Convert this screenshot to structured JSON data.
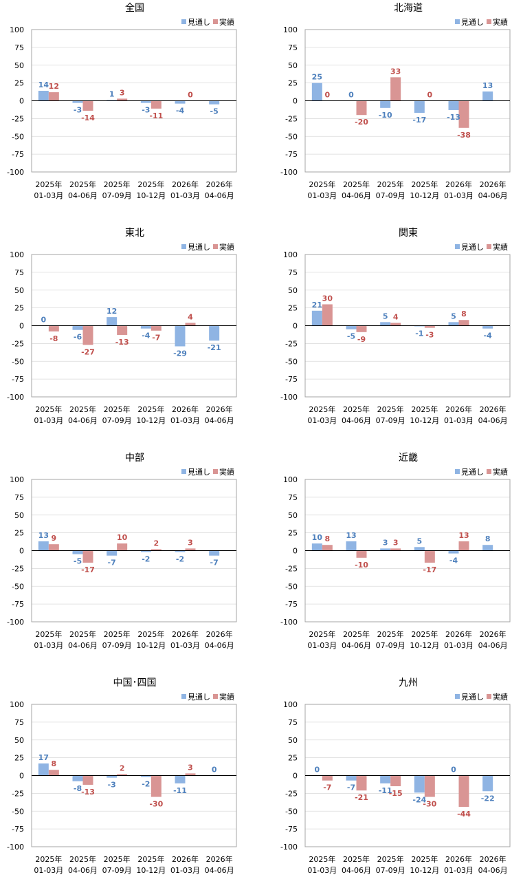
{
  "legend": [
    "見通し",
    "実績"
  ],
  "colors": {
    "forecast": "#8FB4E3",
    "forecast_label": "#4F81BD",
    "actual": "#D99594",
    "actual_label": "#C0504D",
    "grid": "#D9D9D9",
    "axis": "#A6A6A6"
  },
  "chart_data": [
    {
      "type": "bar",
      "title": "全国",
      "categories": [
        [
          "2025年",
          "01-03月"
        ],
        [
          "2025年",
          "04-06月"
        ],
        [
          "2025年",
          "07-09月"
        ],
        [
          "2025年",
          "10-12月"
        ],
        [
          "2026年",
          "01-03月"
        ],
        [
          "2026年",
          "04-06月"
        ]
      ],
      "series": [
        {
          "name": "見通し",
          "values": [
            14,
            -3,
            1,
            -3,
            -4,
            -5
          ]
        },
        {
          "name": "実績",
          "values": [
            12,
            -14,
            3,
            -11,
            0,
            null
          ]
        }
      ],
      "ylim": [
        -100,
        100
      ],
      "yticks": [
        100,
        75,
        50,
        25,
        0,
        -25,
        -50,
        -75,
        -100
      ],
      "grid": true,
      "legend_position": "top-right"
    },
    {
      "type": "bar",
      "title": "北海道",
      "categories": [
        [
          "2025年",
          "01-03月"
        ],
        [
          "2025年",
          "04-06月"
        ],
        [
          "2025年",
          "07-09月"
        ],
        [
          "2025年",
          "10-12月"
        ],
        [
          "2026年",
          "01-03月"
        ],
        [
          "2026年",
          "04-06月"
        ]
      ],
      "series": [
        {
          "name": "見通し",
          "values": [
            25,
            0,
            -10,
            -17,
            -13,
            13
          ]
        },
        {
          "name": "実績",
          "values": [
            0,
            -20,
            33,
            0,
            -38,
            null
          ]
        }
      ],
      "ylim": [
        -100,
        100
      ],
      "yticks": [
        100,
        75,
        50,
        25,
        0,
        -25,
        -50,
        -75,
        -100
      ],
      "grid": true,
      "legend_position": "top-right"
    },
    {
      "type": "bar",
      "title": "東北",
      "categories": [
        [
          "2025年",
          "01-03月"
        ],
        [
          "2025年",
          "04-06月"
        ],
        [
          "2025年",
          "07-09月"
        ],
        [
          "2025年",
          "10-12月"
        ],
        [
          "2026年",
          "01-03月"
        ],
        [
          "2026年",
          "04-06月"
        ]
      ],
      "series": [
        {
          "name": "見通し",
          "values": [
            0,
            -6,
            12,
            -4,
            -29,
            -21
          ]
        },
        {
          "name": "実績",
          "values": [
            -8,
            -27,
            -13,
            -7,
            4,
            null
          ]
        }
      ],
      "ylim": [
        -100,
        100
      ],
      "yticks": [
        100,
        75,
        50,
        25,
        0,
        -25,
        -50,
        -75,
        -100
      ],
      "grid": true,
      "legend_position": "top-right"
    },
    {
      "type": "bar",
      "title": "関東",
      "categories": [
        [
          "2025年",
          "01-03月"
        ],
        [
          "2025年",
          "04-06月"
        ],
        [
          "2025年",
          "07-09月"
        ],
        [
          "2025年",
          "10-12月"
        ],
        [
          "2026年",
          "01-03月"
        ],
        [
          "2026年",
          "04-06月"
        ]
      ],
      "series": [
        {
          "name": "見通し",
          "values": [
            21,
            -5,
            5,
            -1,
            5,
            -4
          ]
        },
        {
          "name": "実績",
          "values": [
            30,
            -9,
            4,
            -3,
            8,
            null
          ]
        }
      ],
      "ylim": [
        -100,
        100
      ],
      "yticks": [
        100,
        75,
        50,
        25,
        0,
        -25,
        -50,
        -75,
        -100
      ],
      "grid": true,
      "legend_position": "top-right"
    },
    {
      "type": "bar",
      "title": "中部",
      "categories": [
        [
          "2025年",
          "01-03月"
        ],
        [
          "2025年",
          "04-06月"
        ],
        [
          "2025年",
          "07-09月"
        ],
        [
          "2025年",
          "10-12月"
        ],
        [
          "2026年",
          "01-03月"
        ],
        [
          "2026年",
          "04-06月"
        ]
      ],
      "series": [
        {
          "name": "見通し",
          "values": [
            13,
            -5,
            -7,
            -2,
            -2,
            -7
          ]
        },
        {
          "name": "実績",
          "values": [
            9,
            -17,
            10,
            2,
            3,
            null
          ]
        }
      ],
      "ylim": [
        -100,
        100
      ],
      "yticks": [
        100,
        75,
        50,
        25,
        0,
        -25,
        -50,
        -75,
        -100
      ],
      "grid": true,
      "legend_position": "top-right"
    },
    {
      "type": "bar",
      "title": "近畿",
      "categories": [
        [
          "2025年",
          "01-03月"
        ],
        [
          "2025年",
          "04-06月"
        ],
        [
          "2025年",
          "07-09月"
        ],
        [
          "2025年",
          "10-12月"
        ],
        [
          "2026年",
          "01-03月"
        ],
        [
          "2026年",
          "04-06月"
        ]
      ],
      "series": [
        {
          "name": "見通し",
          "values": [
            10,
            13,
            3,
            5,
            -4,
            8
          ]
        },
        {
          "name": "実績",
          "values": [
            8,
            -10,
            3,
            -17,
            13,
            null
          ]
        }
      ],
      "ylim": [
        -100,
        100
      ],
      "yticks": [
        100,
        75,
        50,
        25,
        0,
        -25,
        -50,
        -75,
        -100
      ],
      "grid": true,
      "legend_position": "top-right"
    },
    {
      "type": "bar",
      "title": "中国･四国",
      "categories": [
        [
          "2025年",
          "01-03月"
        ],
        [
          "2025年",
          "04-06月"
        ],
        [
          "2025年",
          "07-09月"
        ],
        [
          "2025年",
          "10-12月"
        ],
        [
          "2026年",
          "01-03月"
        ],
        [
          "2026年",
          "04-06月"
        ]
      ],
      "series": [
        {
          "name": "見通し",
          "values": [
            17,
            -8,
            -3,
            -2,
            -11,
            0
          ]
        },
        {
          "name": "実績",
          "values": [
            8,
            -13,
            2,
            -30,
            3,
            null
          ]
        }
      ],
      "ylim": [
        -100,
        100
      ],
      "yticks": [
        100,
        75,
        50,
        25,
        0,
        -25,
        -50,
        -75,
        -100
      ],
      "grid": true,
      "legend_position": "top-right"
    },
    {
      "type": "bar",
      "title": "九州",
      "categories": [
        [
          "2025年",
          "01-03月"
        ],
        [
          "2025年",
          "04-06月"
        ],
        [
          "2025年",
          "07-09月"
        ],
        [
          "2025年",
          "10-12月"
        ],
        [
          "2026年",
          "01-03月"
        ],
        [
          "2026年",
          "04-06月"
        ]
      ],
      "series": [
        {
          "name": "見通し",
          "values": [
            0,
            -7,
            -11,
            -24,
            0,
            -22
          ]
        },
        {
          "name": "実績",
          "values": [
            -7,
            -21,
            -15,
            -30,
            -44,
            null
          ]
        }
      ],
      "ylim": [
        -100,
        100
      ],
      "yticks": [
        100,
        75,
        50,
        25,
        0,
        -25,
        -50,
        -75,
        -100
      ],
      "grid": true,
      "legend_position": "top-right"
    }
  ]
}
